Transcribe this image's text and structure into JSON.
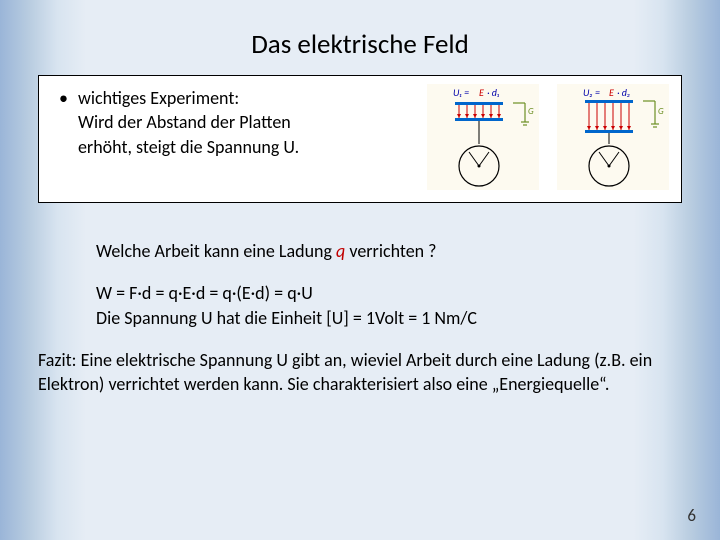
{
  "title": "Das elektrische Feld",
  "bullet": {
    "marker": "•",
    "line1": "wichtiges Experiment:",
    "line2": "Wird der Abstand der Platten",
    "line3": "erhöht, steigt die Spannung U."
  },
  "diagram1": {
    "label_u": "U₁ =",
    "label_e": "E",
    "label_d": "· d₁",
    "gap": 16,
    "colors": {
      "plate": "#0066cc",
      "field": "#cc0000",
      "ground": "#6b8e23",
      "text": "#0000aa"
    }
  },
  "diagram2": {
    "label_u": "U₂ =",
    "label_e": "E",
    "label_d": "· d₂",
    "gap": 30,
    "colors": {
      "plate": "#0066cc",
      "field": "#cc0000",
      "ground": "#6b8e23",
      "text": "#0000aa"
    }
  },
  "question": {
    "pre": "Welche Arbeit kann eine Ladung ",
    "var": "q",
    "post": " verrichten ?"
  },
  "formula": {
    "line1": "W = F·d = q·E·d = q·(E·d) = q·U",
    "line2": "Die Spannung U hat die Einheit [U] = 1Volt = 1 Nm/C"
  },
  "conclusion": "Fazit: Eine elektrische Spannung U gibt an, wieviel Arbeit durch eine Ladung (z.B. ein Elektron) verrichtet werden kann. Sie charakterisiert also eine „Energiequelle“.",
  "page_number": "6"
}
